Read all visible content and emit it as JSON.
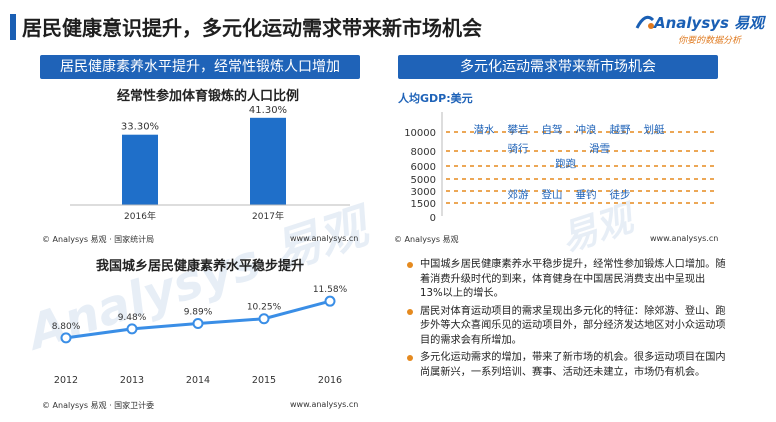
{
  "page": {
    "title": "居民健康意识提升，多元化运动需求带来新市场机会",
    "logo_main": "Analysys 易观",
    "logo_sub": "你要的数据分析"
  },
  "left_panel": {
    "header": "居民健康素养水平提升，经常性锻炼人口增加",
    "source_top": "© Analysys 易观 · 国家统计局",
    "url_top": "www.analysys.cn",
    "source_bottom": "© Analysys 易观 · 国家卫计委",
    "url_bottom": "www.analysys.cn"
  },
  "right_panel": {
    "header": "多元化运动需求带来新市场机会",
    "source": "© Analysys 易观",
    "url": "www.analysys.cn"
  },
  "bullets": [
    "中国城乡居民健康素养水平稳步提升，经常性参加锻炼人口增加。随着消费升级时代的到来，体育健身在中国居民消费支出中呈现出13%以上的增长。",
    "居民对体育运动项目的需求呈现出多元化的特征：除郊游、登山、跑步外等大众喜闻乐见的运动项目外，部分经济发达地区对小众运动项目的需求会有所增加。",
    "多元化运动需求的增加，带来了新市场的机会。很多运动项目在国内尚属新兴，一系列培训、赛事、活动还未建立，市场仍有机会。"
  ],
  "colors": {
    "accent": "#1f63b8",
    "bar": "#1f6fc9",
    "line": "#3a8ee6",
    "orange": "#e58a1f",
    "text_blue": "#1f63b8"
  },
  "chart_data": [
    {
      "type": "bar",
      "title": "经常性参加体育锻炼的人口比例",
      "categories": [
        "2016年",
        "2017年"
      ],
      "values": [
        33.3,
        41.3
      ],
      "value_labels": [
        "33.30%",
        "41.30%"
      ],
      "ylim": [
        0,
        45
      ]
    },
    {
      "type": "line",
      "title": "我国城乡居民健康素养水平稳步提升",
      "categories": [
        "2012",
        "2013",
        "2014",
        "2015",
        "2016"
      ],
      "values": [
        8.8,
        9.48,
        9.89,
        10.25,
        11.58
      ],
      "value_labels": [
        "8.80%",
        "9.48%",
        "9.89%",
        "10.25%",
        "11.58%"
      ],
      "ylim": [
        7.5,
        12.2
      ]
    },
    {
      "type": "scatter",
      "title": "人均GDP:美元",
      "y_ticks": [
        {
          "label": "10000",
          "value": 10000
        },
        {
          "label": "8000",
          "value": 8000
        },
        {
          "label": "6000",
          "value": 6000
        },
        {
          "label": "5000",
          "value": 5000
        },
        {
          "label": "3000",
          "value": 3000
        },
        {
          "label": "1500",
          "value": 1500
        },
        {
          "label": "0",
          "value": 0
        }
      ],
      "dashed_levels": [
        10000,
        8000,
        6000,
        5000,
        3000,
        1500
      ],
      "activities": [
        {
          "name": "潜水",
          "level": 10000,
          "slot": 0
        },
        {
          "name": "攀岩",
          "level": 10000,
          "slot": 1
        },
        {
          "name": "自驾",
          "level": 10000,
          "slot": 2
        },
        {
          "name": "冲浪",
          "level": 10000,
          "slot": 3
        },
        {
          "name": "越野",
          "level": 10000,
          "slot": 4
        },
        {
          "name": "划艇",
          "level": 10000,
          "slot": 5
        },
        {
          "name": "骑行",
          "level": 8000,
          "slot": 1
        },
        {
          "name": "滑雪",
          "level": 8000,
          "slot": 3.4
        },
        {
          "name": "跑跑",
          "level": 6000,
          "slot": 2.4
        },
        {
          "name": "郊游",
          "level": 3000,
          "slot": 1
        },
        {
          "name": "登山",
          "level": 3000,
          "slot": 2
        },
        {
          "name": "垂钓",
          "level": 3000,
          "slot": 3
        },
        {
          "name": "徒步",
          "level": 3000,
          "slot": 4
        }
      ]
    }
  ]
}
